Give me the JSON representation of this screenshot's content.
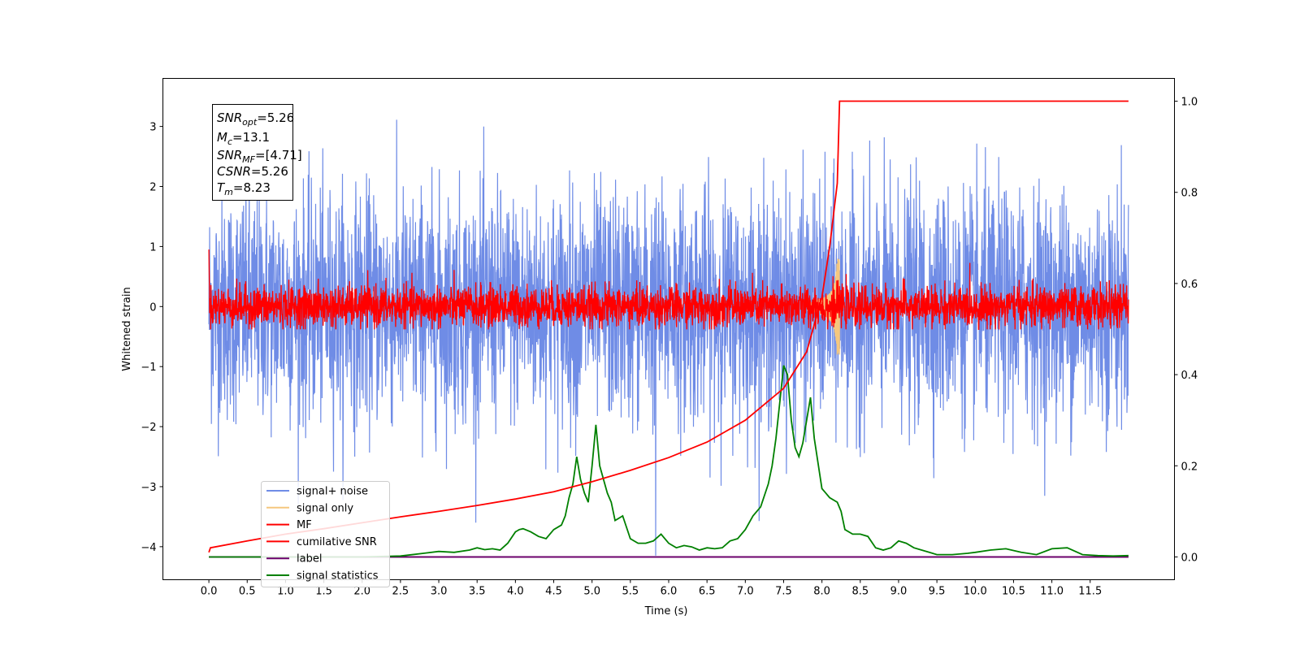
{
  "chart_data": {
    "type": "line",
    "xlabel": "Time (s)",
    "ylabel_left": "Whitened strain",
    "ylabel_right": "",
    "xlim": [
      -0.6,
      12.6
    ],
    "ylim_left": [
      -4.55,
      3.8
    ],
    "ylim_right": [
      -0.05,
      1.05
    ],
    "x_ticks": [
      "0.0",
      "0.5",
      "1.0",
      "1.5",
      "2.0",
      "2.5",
      "3.0",
      "3.5",
      "4.0",
      "4.5",
      "5.0",
      "5.5",
      "6.0",
      "6.5",
      "7.0",
      "7.5",
      "8.0",
      "8.5",
      "9.0",
      "9.5",
      "10.0",
      "10.5",
      "11.0",
      "11.5"
    ],
    "y_ticks_left": [
      "3",
      "2",
      "1",
      "0",
      "−1",
      "−2",
      "−3",
      "−4"
    ],
    "y_ticks_right": [
      "1.0",
      "0.8",
      "0.6",
      "0.4",
      "0.2",
      "0.0"
    ],
    "grid": false,
    "legend_position": "bottom-left",
    "annotation": {
      "lines": [
        {
          "base": "SNR",
          "sub": "opt",
          "value": "=5.26"
        },
        {
          "base": "M",
          "sub": "c",
          "value": "=13.1"
        },
        {
          "base": "SNR",
          "sub": "MF",
          "value": "=[4.71]"
        },
        {
          "base": "CSNR",
          "sub": "",
          "value": "=5.26"
        },
        {
          "base": "T",
          "sub": "m",
          "value": "=8.23"
        }
      ]
    },
    "series": [
      {
        "name": "signal+ noise",
        "color": "#6f8ce6",
        "axis": "left",
        "kind": "noise",
        "x_range": [
          0,
          12.0
        ],
        "amplitude": 3.3,
        "spikes": [
          {
            "x": 5.83,
            "y": -4.15
          }
        ]
      },
      {
        "name": "signal only",
        "color": "#f5c77e",
        "axis": "left",
        "kind": "chirp",
        "peak_x": 8.23,
        "amplitude": 0.8
      },
      {
        "name": "MF",
        "color": "#ff0000",
        "axis": "left",
        "kind": "noise",
        "x_range": [
          0,
          12.0
        ],
        "amplitude": 0.55
      },
      {
        "name": "cumilative SNR",
        "color": "#ff0000",
        "axis": "right",
        "x": [
          0.0,
          0.02,
          0.5,
          1.0,
          1.5,
          2.0,
          2.5,
          3.0,
          3.5,
          4.0,
          4.5,
          5.0,
          5.5,
          6.0,
          6.5,
          7.0,
          7.5,
          7.8,
          8.0,
          8.1,
          8.2,
          8.23,
          12.0
        ],
        "y": [
          0.01,
          0.02,
          0.035,
          0.05,
          0.062,
          0.075,
          0.088,
          0.1,
          0.113,
          0.127,
          0.143,
          0.165,
          0.19,
          0.218,
          0.252,
          0.3,
          0.37,
          0.45,
          0.57,
          0.68,
          0.82,
          1.0,
          1.0
        ]
      },
      {
        "name": "label",
        "color": "#6b006b",
        "axis": "right",
        "x": [
          0.0,
          12.0
        ],
        "y": [
          0.0,
          0.0
        ]
      },
      {
        "name": "signal statistics",
        "color": "#008000",
        "axis": "right",
        "x": [
          0.0,
          0.5,
          1.0,
          1.5,
          2.0,
          2.5,
          2.8,
          3.0,
          3.2,
          3.4,
          3.5,
          3.6,
          3.7,
          3.8,
          3.9,
          4.0,
          4.05,
          4.1,
          4.2,
          4.3,
          4.4,
          4.5,
          4.6,
          4.65,
          4.7,
          4.75,
          4.8,
          4.85,
          4.9,
          4.95,
          5.0,
          5.05,
          5.1,
          5.15,
          5.2,
          5.25,
          5.3,
          5.4,
          5.5,
          5.6,
          5.7,
          5.8,
          5.9,
          6.0,
          6.1,
          6.2,
          6.3,
          6.4,
          6.5,
          6.6,
          6.7,
          6.8,
          6.9,
          7.0,
          7.1,
          7.2,
          7.3,
          7.35,
          7.4,
          7.45,
          7.5,
          7.55,
          7.6,
          7.65,
          7.7,
          7.75,
          7.8,
          7.85,
          7.9,
          8.0,
          8.1,
          8.2,
          8.25,
          8.3,
          8.4,
          8.5,
          8.6,
          8.7,
          8.8,
          8.9,
          9.0,
          9.1,
          9.2,
          9.3,
          9.4,
          9.5,
          9.7,
          9.9,
          10.0,
          10.2,
          10.4,
          10.6,
          10.8,
          11.0,
          11.2,
          11.4,
          11.6,
          11.8,
          12.0
        ],
        "y": [
          0.0,
          0.0,
          0.0,
          0.0,
          0.0,
          0.002,
          0.008,
          0.012,
          0.01,
          0.015,
          0.02,
          0.016,
          0.018,
          0.015,
          0.03,
          0.055,
          0.06,
          0.062,
          0.055,
          0.045,
          0.04,
          0.06,
          0.07,
          0.09,
          0.13,
          0.16,
          0.22,
          0.17,
          0.14,
          0.12,
          0.2,
          0.29,
          0.2,
          0.17,
          0.14,
          0.12,
          0.08,
          0.09,
          0.04,
          0.03,
          0.03,
          0.035,
          0.05,
          0.03,
          0.02,
          0.025,
          0.022,
          0.015,
          0.02,
          0.018,
          0.02,
          0.035,
          0.04,
          0.06,
          0.09,
          0.11,
          0.16,
          0.2,
          0.26,
          0.34,
          0.42,
          0.4,
          0.3,
          0.24,
          0.22,
          0.25,
          0.3,
          0.35,
          0.26,
          0.15,
          0.13,
          0.12,
          0.1,
          0.06,
          0.05,
          0.05,
          0.045,
          0.02,
          0.015,
          0.02,
          0.035,
          0.03,
          0.02,
          0.015,
          0.01,
          0.005,
          0.005,
          0.008,
          0.01,
          0.015,
          0.018,
          0.01,
          0.005,
          0.018,
          0.02,
          0.005,
          0.003,
          0.002,
          0.003
        ]
      }
    ]
  }
}
